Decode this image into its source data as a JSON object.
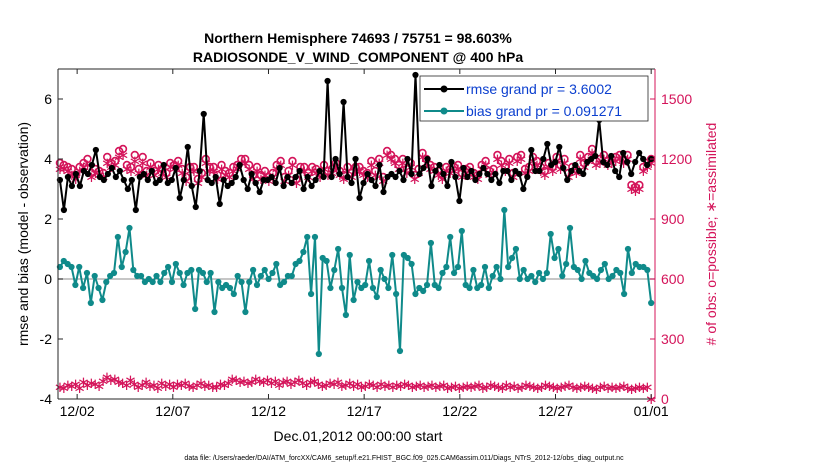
{
  "chart_data": {
    "type": "line",
    "title": "Northern Hemisphere 74693 / 75751 = 98.603%",
    "subtitle": "RADIOSONDE_V_WIND_COMPONENT @ 400 hPa",
    "xlabel": "Dec.01,2012 00:00:00 start",
    "ylabel_left": "rmse and bias (model - observation)",
    "ylabel_right": "# of obs: o=possible; ∗=assimilated",
    "footer": "data file: /Users/raeder/DAI/ATM_forcXX/CAM6_setup/f.e21.FHIST_BGC.f09_025.CAM6assim.011/Diags_NTrS_2012-12/obs_diag_output.nc",
    "x_range": [
      0,
      31.2
    ],
    "x_ticks": [
      {
        "value": 1,
        "label": "12/02"
      },
      {
        "value": 6,
        "label": "12/07"
      },
      {
        "value": 11,
        "label": "12/12"
      },
      {
        "value": 16,
        "label": "12/17"
      },
      {
        "value": 21,
        "label": "12/22"
      },
      {
        "value": 26,
        "label": "12/27"
      },
      {
        "value": 31,
        "label": "01/01"
      }
    ],
    "ylim_left": [
      -4,
      7
    ],
    "yticks_left": [
      -4,
      -2,
      0,
      2,
      4,
      6
    ],
    "ylim_right": [
      0,
      1650
    ],
    "yticks_right": [
      0,
      300,
      600,
      900,
      1200,
      1500
    ],
    "zero_line": 0,
    "legend": [
      {
        "label": "rmse grand pr = 3.6002",
        "color": "#000000"
      },
      {
        "label": "bias grand pr = 0.091271",
        "color": "#0f8a8a"
      }
    ],
    "series": [
      {
        "name": "rmse",
        "axis": "left",
        "color": "#000000",
        "values": [
          3.3,
          2.3,
          3.4,
          3.1,
          3.5,
          3.1,
          3.6,
          3.5,
          3.8,
          4.3,
          3.4,
          3.3,
          3.5,
          3.7,
          3.4,
          3.6,
          3.3,
          3.0,
          3.3,
          2.3,
          3.4,
          3.5,
          3.3,
          3.6,
          3.2,
          3.3,
          3.8,
          3.2,
          3.3,
          3.7,
          2.7,
          3.3,
          4.4,
          3.1,
          2.4,
          3.6,
          5.5,
          3.3,
          3.2,
          3.4,
          2.5,
          3.3,
          3.1,
          3.2,
          3.4,
          3.8,
          3.3,
          3.0,
          3.5,
          3.2,
          2.9,
          3.3,
          3.3,
          3.4,
          3.2,
          3.7,
          3.1,
          3.4,
          3.2,
          3.4,
          3.6,
          3.0,
          3.4,
          3.1,
          3.3,
          3.6,
          3.4,
          6.6,
          3.4,
          4.0,
          3.5,
          5.9,
          3.4,
          3.2,
          4.0,
          2.7,
          3.2,
          3.5,
          3.3,
          3.1,
          3.8,
          2.9,
          3.4,
          3.5,
          3.4,
          3.6,
          3.3,
          4.0,
          3.5,
          6.8,
          3.5,
          3.7,
          4.0,
          3.1,
          3.6,
          3.8,
          3.5,
          3.1,
          3.9,
          3.4,
          2.6,
          3.7,
          3.4,
          3.6,
          3.3,
          3.5,
          3.7,
          3.5,
          3.3,
          3.5,
          3.2,
          3.6,
          3.6,
          3.3,
          3.6,
          3.5,
          3.0,
          3.4,
          4.3,
          3.6,
          3.6,
          4.0,
          4.5,
          3.8,
          3.9,
          4.4,
          3.7,
          3.3,
          3.6,
          3.8,
          3.6,
          3.5,
          3.9,
          4.0,
          4.1,
          5.3,
          3.9,
          3.8,
          4.1,
          3.6,
          3.4,
          4.2,
          3.9,
          3.5,
          3.9,
          4.2,
          4.0,
          3.8,
          4.0
        ]
      },
      {
        "name": "bias",
        "axis": "left",
        "color": "#0f8a8a",
        "values": [
          0.4,
          0.6,
          0.5,
          0.4,
          -0.2,
          0.4,
          -0.3,
          0.2,
          -0.8,
          0.1,
          -0.3,
          -0.7,
          -0.1,
          0.1,
          0.2,
          1.4,
          0.4,
          0.9,
          1.7,
          0.3,
          0.1,
          0.1,
          -0.1,
          0.0,
          -0.1,
          0.1,
          -0.1,
          0.2,
          0.4,
          -0.1,
          0.5,
          0.2,
          -0.2,
          0.2,
          0.3,
          -1.0,
          0.3,
          0.2,
          -0.1,
          0.2,
          -1.1,
          -0.1,
          -0.3,
          -0.2,
          -0.3,
          -0.5,
          0.1,
          -0.1,
          -1.1,
          -0.1,
          0.3,
          -0.2,
          0.1,
          0.3,
          0.0,
          0.2,
          0.5,
          -0.2,
          -0.1,
          0.1,
          0.1,
          0.5,
          0.6,
          0.9,
          1.4,
          -0.5,
          1.4,
          -2.5,
          0.7,
          0.6,
          -0.3,
          0.3,
          1.0,
          -0.3,
          -1.2,
          0.8,
          -0.7,
          -0.1,
          -0.3,
          -0.2,
          0.6,
          -0.3,
          -0.6,
          0.3,
          0.0,
          -0.3,
          0.8,
          -0.5,
          -2.4,
          0.8,
          0.7,
          0.5,
          -0.5,
          -0.3,
          -0.4,
          -0.2,
          1.2,
          -0.2,
          -0.3,
          0.2,
          0.4,
          1.4,
          0.2,
          0.4,
          1.6,
          -0.2,
          -0.3,
          0.3,
          -0.3,
          -0.2,
          0.4,
          -0.3,
          0.1,
          0.4,
          0.0,
          2.3,
          0.4,
          0.7,
          1.0,
          0.0,
          0.3,
          0.0,
          0.1,
          -0.1,
          0.2,
          0.0,
          0.2,
          1.5,
          0.7,
          1.0,
          0.1,
          0.5,
          1.7,
          0.4,
          0.3,
          0.0,
          0.6,
          0.2,
          0.1,
          0.0,
          0.3,
          0.5,
          0.0,
          0.1,
          0.3,
          0.2,
          -0.5,
          1.0,
          0.2,
          0.5,
          0.4,
          0.4,
          0.3,
          -0.8
        ]
      },
      {
        "name": "possible",
        "axis": "right",
        "marker": "o",
        "color": "#d4145a",
        "values": [
          1180,
          1170,
          1160,
          1150,
          1120,
          1160,
          1180,
          1200,
          1130,
          1150,
          1140,
          1130,
          1210,
          1180,
          1190,
          1240,
          1250,
          1170,
          1160,
          1220,
          1150,
          1210,
          1140,
          1180,
          1140,
          1170,
          1150,
          1130,
          1180,
          1170,
          1190,
          1150,
          1110,
          1160,
          1160,
          1100,
          1130,
          1200,
          1160,
          1160,
          1120,
          1170,
          1140,
          1130,
          1160,
          1170,
          1200,
          1200,
          1170,
          1120,
          1160,
          1120,
          1140,
          1110,
          1130,
          1170,
          1190,
          1110,
          1140,
          1190,
          1100,
          1160,
          1160,
          1130,
          1160,
          1150,
          1130,
          1170,
          1140,
          1150,
          1180,
          1140,
          1120,
          1160,
          1130,
          1160,
          1160,
          1140,
          1130,
          1190,
          1140,
          1200,
          1110,
          1240,
          1220,
          1200,
          1170,
          1200,
          1150,
          1180,
          1120,
          1150,
          1230,
          1200,
          1170,
          1160,
          1140,
          1120,
          1160,
          1150,
          1160,
          1170,
          1130,
          1150,
          1160,
          1130,
          1120,
          1170,
          1190,
          1140,
          1150,
          1220,
          1190,
          1160,
          1200,
          1130,
          1210,
          1220,
          1150,
          1160,
          1210,
          1190,
          1160,
          1140,
          1180,
          1160,
          1210,
          1170,
          1200,
          1130,
          1160,
          1150,
          1220,
          1180,
          1210,
          1250,
          1190,
          1200,
          1220,
          1190,
          1200,
          1210,
          1220,
          1200,
          1220,
          1070,
          1060,
          1070,
          1160,
          1180,
          1200
        ]
      },
      {
        "name": "assimilated",
        "axis": "right",
        "marker": "*",
        "color": "#d4145a",
        "values": [
          1150,
          1150,
          1140,
          1120,
          1100,
          1140,
          1160,
          1170,
          1110,
          1130,
          1120,
          1110,
          1180,
          1160,
          1170,
          1210,
          1220,
          1150,
          1140,
          1190,
          1130,
          1180,
          1120,
          1160,
          1120,
          1150,
          1130,
          1110,
          1160,
          1150,
          1170,
          1130,
          1090,
          1140,
          1140,
          1080,
          1110,
          1180,
          1140,
          1140,
          1100,
          1150,
          1120,
          1110,
          1140,
          1150,
          1180,
          1180,
          1150,
          1100,
          1140,
          1100,
          1120,
          1090,
          1110,
          1150,
          1170,
          1090,
          1120,
          1170,
          1080,
          1140,
          1140,
          1110,
          1140,
          1130,
          1110,
          1150,
          1120,
          1130,
          1160,
          1120,
          1100,
          1140,
          1110,
          1140,
          1140,
          1120,
          1110,
          1170,
          1120,
          1180,
          1090,
          1220,
          1200,
          1180,
          1150,
          1180,
          1130,
          1160,
          1100,
          1130,
          1210,
          1180,
          1150,
          1140,
          1120,
          1100,
          1140,
          1130,
          1140,
          1150,
          1110,
          1130,
          1140,
          1110,
          1100,
          1150,
          1170,
          1120,
          1130,
          1200,
          1170,
          1140,
          1180,
          1110,
          1190,
          1200,
          1130,
          1140,
          1190,
          1170,
          1140,
          1120,
          1160,
          1140,
          1190,
          1150,
          1180,
          1110,
          1140,
          1130,
          1200,
          1160,
          1190,
          1230,
          1170,
          1180,
          1200,
          1170,
          1180,
          1190,
          1200,
          1180,
          1200,
          1050,
          1040,
          1050,
          1140,
          1160,
          1180
        ]
      },
      {
        "name": "assimilated (bottom)",
        "axis": "right",
        "marker": "*",
        "color": "#d4145a",
        "values": [
          60,
          55,
          70,
          65,
          75,
          55,
          85,
          70,
          80,
          75,
          65,
          90,
          110,
          95,
          100,
          85,
          80,
          70,
          95,
          75,
          60,
          70,
          85,
          65,
          70,
          55,
          80,
          65,
          75,
          60,
          75,
          70,
          80,
          65,
          60,
          70,
          80,
          65,
          70,
          60,
          60,
          75,
          70,
          80,
          100,
          95,
          85,
          90,
          80,
          85,
          100,
          90,
          85,
          95,
          80,
          90,
          70,
          85,
          90,
          75,
          85,
          95,
          80,
          70,
          85,
          90,
          75,
          65,
          70,
          80,
          75,
          85,
          65,
          70,
          80,
          65,
          75,
          60,
          65,
          75,
          70,
          60,
          75,
          65,
          70,
          60,
          70,
          65,
          75,
          70,
          60,
          65,
          70,
          60,
          65,
          70,
          60,
          65,
          70,
          55,
          60,
          65,
          55,
          60,
          65,
          60,
          65,
          70,
          55,
          60,
          70,
          65,
          60,
          55,
          70,
          60,
          65,
          55,
          60,
          70,
          65,
          60,
          55,
          60,
          70,
          65,
          60,
          55,
          60,
          65,
          70,
          60,
          55,
          60,
          65,
          60,
          55,
          50,
          60,
          65,
          55,
          60,
          55,
          60,
          65,
          55,
          50,
          55,
          60,
          55,
          60,
          0
        ]
      }
    ]
  }
}
